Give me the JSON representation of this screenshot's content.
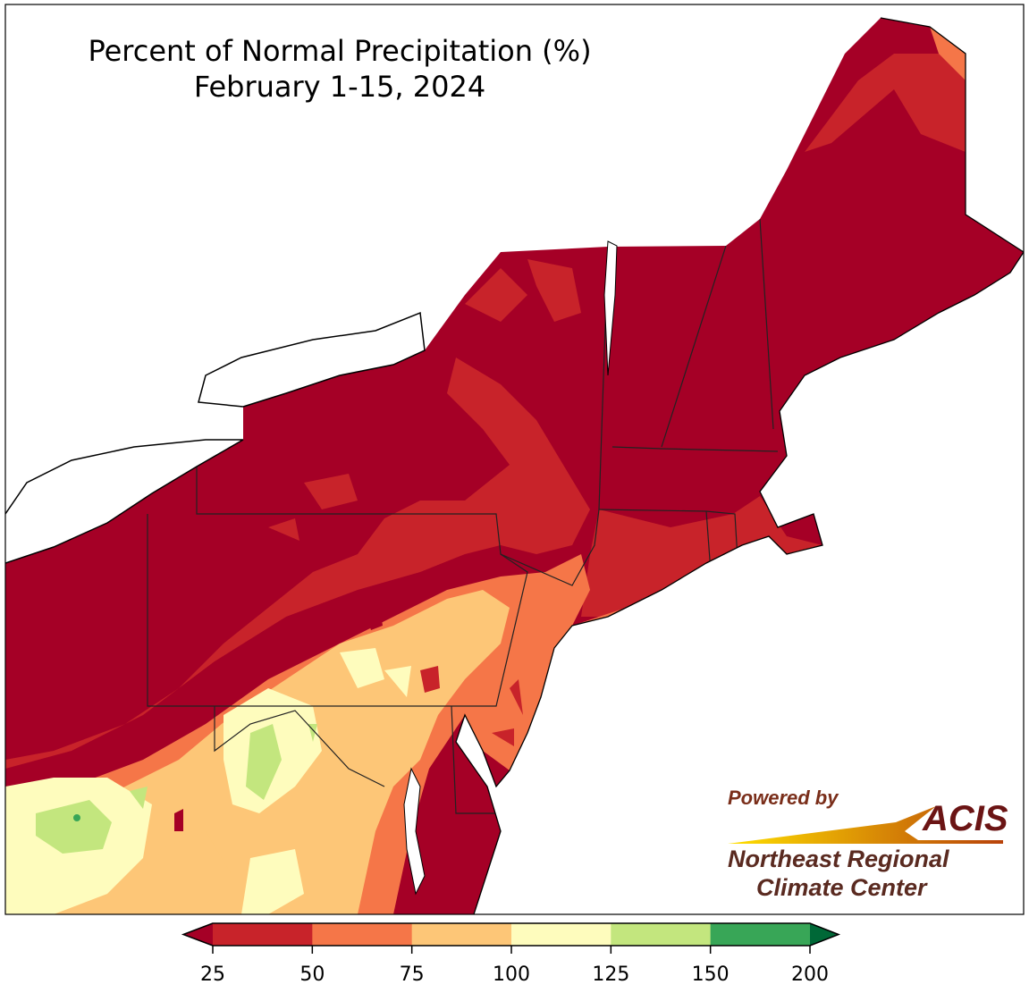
{
  "title": {
    "line1": "Percent of Normal Precipitation (%)",
    "line2": "February 1-15, 2024"
  },
  "legend": {
    "ticks": [
      "25",
      "50",
      "75",
      "100",
      "125",
      "150",
      "200"
    ],
    "bins": [
      {
        "range": "<25",
        "color": "#a50026"
      },
      {
        "range": "25-50",
        "color": "#c8232a"
      },
      {
        "range": "50-75",
        "color": "#f57648"
      },
      {
        "range": "75-100",
        "color": "#fdc677"
      },
      {
        "range": "100-125",
        "color": "#fefcbd"
      },
      {
        "range": "125-150",
        "color": "#c3e67e"
      },
      {
        "range": "150-200",
        "color": "#38a657"
      },
      {
        "range": ">200",
        "color": "#006837"
      }
    ]
  },
  "logo": {
    "powered_by": "Powered by",
    "acis": "ACIS",
    "org_line1": "Northeast Regional",
    "org_line2": "Climate Center"
  }
}
